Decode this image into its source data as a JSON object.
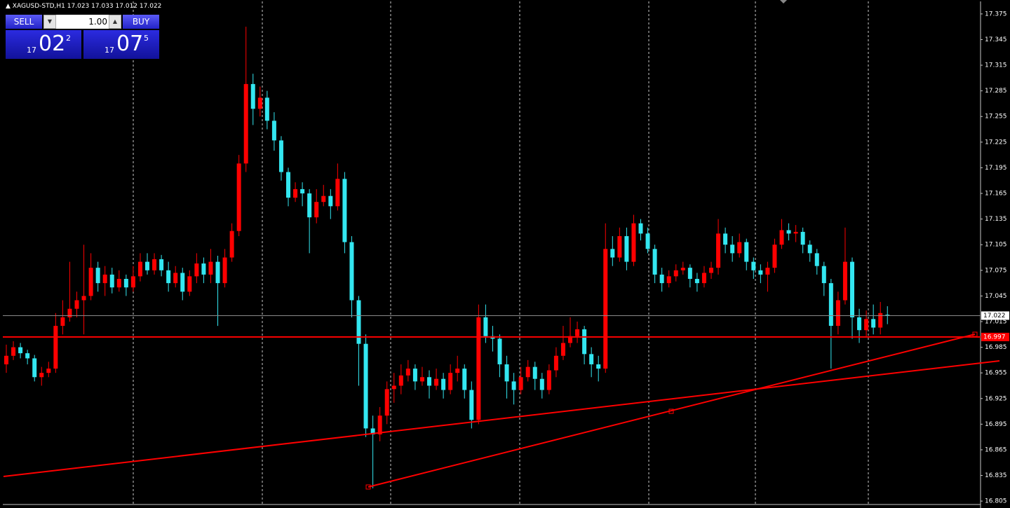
{
  "chart_data": {
    "type": "candlestick",
    "symbol": "XAGUSD-STD,H1",
    "up_color": "#ff0000",
    "down_color": "#33e6f0",
    "ylim": [
      16.801,
      17.379
    ],
    "yticks": [
      17.375,
      17.345,
      17.315,
      17.285,
      17.255,
      17.225,
      17.195,
      17.165,
      17.135,
      17.105,
      17.075,
      17.045,
      17.015,
      16.985,
      16.955,
      16.925,
      16.895,
      16.865,
      16.835,
      16.805
    ],
    "grid": true,
    "current_price": 17.022,
    "hline": {
      "value": 16.997,
      "color": "#ff0000"
    },
    "open": [
      16.965,
      16.975,
      16.985,
      16.978,
      16.972,
      16.95,
      16.955,
      16.96,
      17.01,
      17.02,
      17.03,
      17.04,
      17.045,
      17.078,
      17.06,
      17.07,
      17.055,
      17.065,
      17.055,
      17.068,
      17.085,
      17.075,
      17.088,
      17.075,
      17.06,
      17.072,
      17.05,
      17.068,
      17.083,
      17.07,
      17.085,
      17.06,
      17.09,
      17.121,
      17.2,
      17.293,
      17.264,
      17.277,
      17.25,
      17.227,
      17.19,
      17.16,
      17.17,
      17.165,
      17.137,
      17.155,
      17.162,
      17.15,
      17.182,
      17.108,
      17.04,
      16.989,
      16.89,
      16.883,
      16.905,
      16.936,
      16.94,
      16.952,
      16.96,
      16.945,
      16.95,
      16.94,
      16.948,
      16.935,
      16.955,
      16.96,
      16.935,
      16.9,
      17.02,
      16.998,
      16.995,
      16.965,
      16.945,
      16.935,
      16.95,
      16.962,
      16.948,
      16.935,
      16.958,
      16.975,
      16.99,
      16.998,
      17.006,
      16.977,
      16.965,
      16.96,
      17.1,
      17.09,
      17.115,
      17.085,
      17.13,
      17.118,
      17.1,
      17.07,
      17.06,
      17.068,
      17.075,
      17.078,
      17.065,
      17.06,
      17.072,
      17.078,
      17.118,
      17.105,
      17.095,
      17.108,
      17.085,
      17.075,
      17.07,
      17.078,
      17.105,
      17.122,
      17.118,
      17.12,
      17.105,
      17.095,
      17.08,
      17.06,
      17.01,
      17.04,
      17.085,
      17.02,
      17.005,
      17.018,
      17.008,
      17.023
    ],
    "high": [
      16.988,
      16.992,
      16.99,
      16.982,
      16.976,
      16.962,
      16.968,
      17.025,
      17.04,
      17.085,
      17.05,
      17.105,
      17.095,
      17.085,
      17.08,
      17.078,
      17.075,
      17.07,
      17.08,
      17.095,
      17.095,
      17.095,
      17.093,
      17.085,
      17.08,
      17.078,
      17.075,
      17.095,
      17.09,
      17.1,
      17.092,
      17.1,
      17.13,
      17.21,
      17.36,
      17.305,
      17.29,
      17.285,
      17.26,
      17.232,
      17.195,
      17.178,
      17.178,
      17.17,
      17.17,
      17.175,
      17.17,
      17.2,
      17.19,
      17.115,
      17.045,
      17.0,
      16.905,
      16.915,
      16.945,
      16.955,
      16.965,
      16.97,
      16.965,
      16.962,
      16.958,
      16.96,
      16.955,
      16.965,
      16.975,
      16.965,
      16.945,
      17.035,
      17.035,
      17.01,
      17.0,
      16.975,
      16.955,
      16.962,
      16.97,
      16.968,
      16.955,
      16.965,
      16.985,
      17.01,
      17.02,
      17.015,
      17.01,
      16.985,
      16.975,
      17.13,
      17.115,
      17.125,
      17.125,
      17.14,
      17.135,
      17.125,
      17.105,
      17.078,
      17.075,
      17.082,
      17.085,
      17.082,
      17.072,
      17.08,
      17.085,
      17.135,
      17.125,
      17.115,
      17.118,
      17.112,
      17.09,
      17.082,
      17.085,
      17.112,
      17.135,
      17.13,
      17.128,
      17.125,
      17.11,
      17.1,
      17.085,
      17.065,
      17.05,
      17.125,
      17.09,
      17.03,
      17.028,
      17.035,
      17.038,
      17.033
    ],
    "low": [
      16.955,
      16.97,
      16.972,
      16.965,
      16.945,
      16.94,
      16.95,
      16.955,
      17.0,
      17.015,
      17.02,
      17.0,
      17.04,
      17.05,
      17.045,
      17.048,
      17.05,
      17.045,
      17.05,
      17.062,
      17.07,
      17.07,
      17.068,
      17.05,
      17.055,
      17.04,
      17.045,
      17.06,
      17.06,
      17.06,
      17.01,
      17.055,
      17.085,
      17.115,
      17.19,
      17.245,
      17.255,
      17.24,
      17.215,
      17.18,
      17.15,
      17.155,
      17.15,
      17.095,
      17.13,
      17.15,
      17.135,
      17.145,
      17.095,
      17.02,
      16.94,
      16.88,
      16.82,
      16.875,
      16.895,
      16.92,
      16.93,
      16.945,
      16.935,
      16.94,
      16.925,
      16.935,
      16.925,
      16.93,
      16.945,
      16.925,
      16.89,
      16.895,
      16.99,
      16.98,
      16.95,
      16.925,
      16.918,
      16.93,
      16.945,
      16.935,
      16.925,
      16.93,
      16.95,
      16.97,
      16.985,
      16.99,
      16.965,
      16.95,
      16.945,
      16.955,
      17.08,
      17.085,
      17.075,
      17.08,
      17.11,
      17.095,
      17.06,
      17.05,
      17.055,
      17.062,
      17.07,
      17.055,
      17.05,
      17.055,
      17.065,
      17.07,
      17.095,
      17.085,
      17.09,
      17.075,
      17.065,
      17.06,
      17.05,
      17.072,
      17.1,
      17.11,
      17.108,
      17.095,
      17.085,
      17.07,
      17.045,
      16.96,
      17.0,
      17.035,
      16.995,
      16.99,
      16.998,
      17.0,
      17.0,
      17.012
    ],
    "close": [
      16.975,
      16.985,
      16.978,
      16.972,
      16.95,
      16.955,
      16.96,
      17.01,
      17.02,
      17.03,
      17.04,
      17.045,
      17.078,
      17.06,
      17.07,
      17.055,
      17.065,
      17.055,
      17.068,
      17.085,
      17.075,
      17.088,
      17.075,
      17.06,
      17.072,
      17.05,
      17.068,
      17.083,
      17.07,
      17.085,
      17.06,
      17.09,
      17.121,
      17.2,
      17.293,
      17.264,
      17.277,
      17.25,
      17.227,
      17.19,
      17.16,
      17.17,
      17.165,
      17.137,
      17.155,
      17.162,
      17.15,
      17.182,
      17.108,
      17.04,
      16.989,
      16.89,
      16.883,
      16.905,
      16.936,
      16.94,
      16.952,
      16.96,
      16.945,
      16.95,
      16.94,
      16.948,
      16.935,
      16.955,
      16.96,
      16.935,
      16.9,
      17.02,
      16.998,
      16.995,
      16.965,
      16.945,
      16.935,
      16.95,
      16.962,
      16.948,
      16.935,
      16.958,
      16.975,
      16.99,
      16.998,
      17.006,
      16.977,
      16.965,
      16.96,
      17.1,
      17.09,
      17.115,
      17.085,
      17.13,
      17.118,
      17.1,
      17.07,
      17.06,
      17.068,
      17.075,
      17.078,
      17.065,
      17.06,
      17.072,
      17.078,
      17.118,
      17.105,
      17.095,
      17.108,
      17.085,
      17.075,
      17.07,
      17.078,
      17.105,
      17.122,
      17.118,
      17.12,
      17.105,
      17.095,
      17.08,
      17.06,
      17.01,
      17.04,
      17.085,
      17.02,
      17.005,
      17.018,
      17.008,
      17.025,
      17.022
    ]
  },
  "trade_panel": {
    "sell": "SELL",
    "buy": "BUY",
    "volume": "1.00",
    "bid": [
      "17",
      "02",
      "2"
    ],
    "ask": [
      "17",
      "07",
      "5"
    ]
  }
}
